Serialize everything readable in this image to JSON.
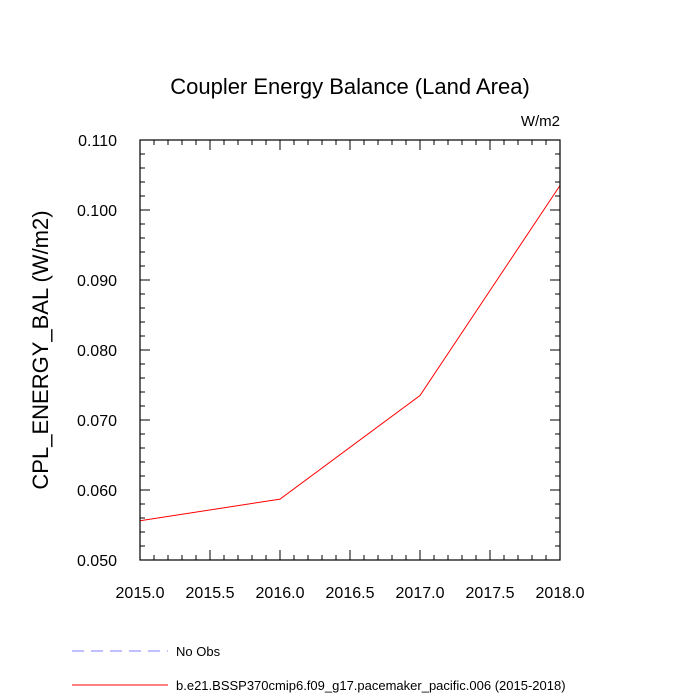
{
  "chart_data": {
    "type": "line",
    "title": "Coupler Energy Balance (Land Area)",
    "units": "W/m2",
    "ylabel": "CPL_ENERGY_BAL  (W/m2)",
    "xlabel": "",
    "xlim": [
      2015.0,
      2018.0
    ],
    "ylim": [
      0.05,
      0.11
    ],
    "x_ticks": [
      "2015.0",
      "2015.5",
      "2016.0",
      "2016.5",
      "2017.0",
      "2017.5",
      "2018.0"
    ],
    "y_ticks": [
      "0.050",
      "0.060",
      "0.070",
      "0.080",
      "0.090",
      "0.100",
      "0.110"
    ],
    "series": [
      {
        "name": "b.e21.BSSP370cmip6.f09_g17.pacemaker_pacific.006 (2015-2018)",
        "color": "#ff0000",
        "style": "solid",
        "x": [
          2015.0,
          2016.0,
          2017.0,
          2018.0
        ],
        "values": [
          0.0556,
          0.0587,
          0.0735,
          0.1035
        ]
      }
    ],
    "legend": [
      {
        "label": "No Obs",
        "color": "#8080ff",
        "style": "dashed"
      },
      {
        "label": "b.e21.BSSP370cmip6.f09_g17.pacemaker_pacific.006 (2015-2018)",
        "color": "#ff0000",
        "style": "solid"
      }
    ],
    "legend_position": "bottom-left",
    "grid": false
  }
}
